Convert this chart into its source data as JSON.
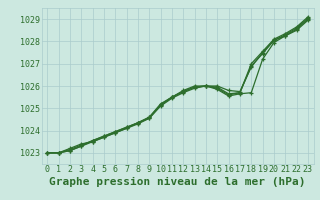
{
  "title": "Graphe pression niveau de la mer (hPa)",
  "xlim": [
    -0.5,
    23.5
  ],
  "ylim": [
    1022.5,
    1029.5
  ],
  "yticks": [
    1023,
    1024,
    1025,
    1026,
    1027,
    1028,
    1029
  ],
  "xticks": [
    0,
    1,
    2,
    3,
    4,
    5,
    6,
    7,
    8,
    9,
    10,
    11,
    12,
    13,
    14,
    15,
    16,
    17,
    18,
    19,
    20,
    21,
    22,
    23
  ],
  "bg_color": "#cce8e0",
  "grid_color": "#aacccc",
  "line_color": "#2d6e2d",
  "marker": "+",
  "series": [
    [
      1023.0,
      1023.0,
      1023.2,
      1023.4,
      1023.5,
      1023.7,
      1023.9,
      1024.1,
      1024.35,
      1024.6,
      1025.2,
      1025.5,
      1025.8,
      1026.0,
      1026.0,
      1026.0,
      1025.8,
      1025.75,
      1026.85,
      1027.5,
      1028.05,
      1028.25,
      1028.55,
      1029.0
    ],
    [
      1023.0,
      1023.0,
      1023.15,
      1023.35,
      1023.55,
      1023.75,
      1023.95,
      1024.15,
      1024.35,
      1024.55,
      1025.15,
      1025.5,
      1025.75,
      1025.95,
      1026.0,
      1025.85,
      1025.55,
      1025.65,
      1025.7,
      1027.2,
      1027.95,
      1028.25,
      1028.5,
      1028.95
    ],
    [
      1023.0,
      1023.0,
      1023.1,
      1023.3,
      1023.5,
      1023.7,
      1023.9,
      1024.1,
      1024.3,
      1024.55,
      1025.1,
      1025.45,
      1025.7,
      1025.9,
      1026.0,
      1025.9,
      1025.6,
      1025.7,
      1027.0,
      1027.55,
      1028.1,
      1028.35,
      1028.65,
      1029.1
    ],
    [
      1023.0,
      1023.0,
      1023.1,
      1023.3,
      1023.55,
      1023.75,
      1023.95,
      1024.15,
      1024.35,
      1024.6,
      1025.15,
      1025.5,
      1025.75,
      1025.95,
      1026.0,
      1025.95,
      1025.65,
      1025.7,
      1026.9,
      1027.45,
      1028.05,
      1028.3,
      1028.6,
      1029.05
    ]
  ],
  "title_fontsize": 8,
  "tick_fontsize": 6,
  "title_color": "#2d6e2d",
  "tick_color": "#2d6e2d",
  "linewidth": 0.9,
  "markersize": 2.5,
  "markeredgewidth": 0.9
}
